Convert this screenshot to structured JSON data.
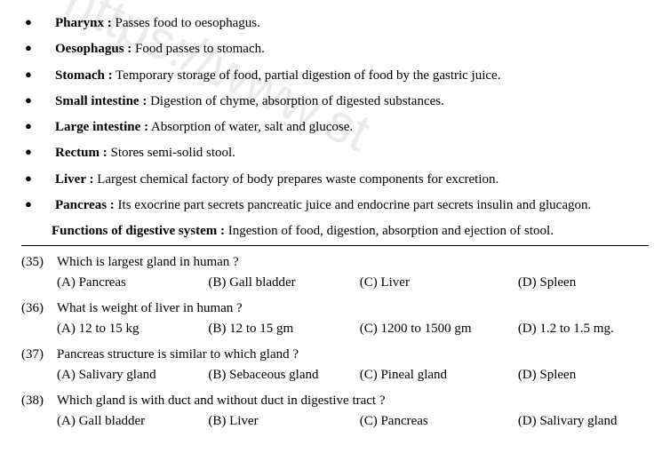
{
  "watermark": "https://www.st",
  "bullets": [
    {
      "term": "Pharynx :",
      "desc": " Passes food to oesophagus."
    },
    {
      "term": "Oesophagus :",
      "desc": " Food passes to stomach."
    },
    {
      "term": "Stomach  :",
      "desc": " Temporary storage of food, partial digestion of food by the gastric juice."
    },
    {
      "term": "Small intestine :",
      "desc": " Digestion of chyme, absorption of digested substances."
    },
    {
      "term": "Large intestine :",
      "desc": " Absorption of water, salt and glucose."
    },
    {
      "term": "Rectum :",
      "desc": " Stores semi-solid stool."
    },
    {
      "term": "Liver :",
      "desc": " Largest chemical factory of body prepares waste components for excretion."
    },
    {
      "term": "Pancreas :",
      "desc": " Its exocrine part secrets pancreatic juice and endocrine part secrets insulin and glucagon."
    }
  ],
  "functions": {
    "term": "Functions of digestive system :",
    "desc": " Ingestion of food, digestion, absorption and ejection of stool."
  },
  "questions": [
    {
      "num": "(35)",
      "text": "Which is largest gland in human ?",
      "opts": {
        "a": "(A)  Pancreas",
        "b": "(B) Gall bladder",
        "c": "(C) Liver",
        "d": "(D) Spleen"
      }
    },
    {
      "num": "(36)",
      "text": "What is weight of liver in human  ?",
      "opts": {
        "a": "(A)    12 to 15 kg",
        "b": "(B) 12 to 15 gm",
        "c": "(C) 1200 to  1500 gm",
        "d": "(D) 1.2 to 1.5 mg."
      }
    },
    {
      "num": "(37)",
      "text": "Pancreas structure is similar to which gland ?",
      "opts": {
        "a": "(A) Salivary gland",
        "b": "(B) Sebaceous gland",
        "c": "(C) Pineal gland",
        "d": "(D) Spleen"
      }
    },
    {
      "num": "(38)",
      "text": "Which gland is with duct and without duct in digestive tract ?",
      "opts": {
        "a": "(A) Gall bladder",
        "b": "(B) Liver",
        "c": "(C) Pancreas",
        "d": "(D) Salivary gland"
      }
    }
  ]
}
